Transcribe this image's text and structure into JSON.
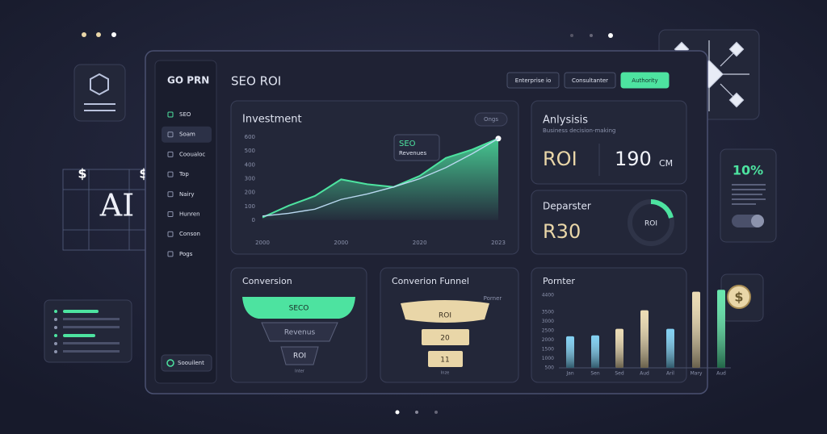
{
  "sidebar": {
    "logo": "GO PRN",
    "items": [
      "SEO",
      "Soam",
      "Cooualoc",
      "Top",
      "Nairy",
      "Hunren",
      "Conson",
      "Pogs"
    ],
    "footer": "Soouilent"
  },
  "header": {
    "title": "SEO ROI",
    "buttons": [
      "Enterprise io",
      "Consultanter",
      "Authority"
    ]
  },
  "cards": {
    "analysis": {
      "title": "Anlysisis",
      "subtitle": "Business decision-making",
      "metric_label": "ROI",
      "metric_value": "190",
      "metric_unit": "CM"
    },
    "departer": {
      "title": "Deparster",
      "value": "R30",
      "ring_label": "ROI"
    },
    "conversion": {
      "title": "Conversion",
      "stages": [
        "SECO",
        "Revenus",
        "ROI"
      ],
      "note": "Inter"
    },
    "funnel": {
      "title": "Converion Funnel",
      "tag": "Porner",
      "stages": [
        "ROI",
        "20",
        "11"
      ],
      "note": "Inze"
    },
    "badge": {
      "value": "10%"
    }
  },
  "decor": {
    "ai_label": "AI",
    "currency": "$"
  },
  "chart_data": [
    {
      "type": "area",
      "title": "Investment",
      "button": "Ongs",
      "annotation": [
        "SEO",
        "Revenues"
      ],
      "categories": [
        "2000",
        null,
        null,
        "2000",
        null,
        null,
        "2020",
        null,
        null,
        "2023"
      ],
      "series": [
        {
          "color": "#4de3a0",
          "values": [
            20,
            105,
            175,
            295,
            260,
            240,
            320,
            450,
            510,
            590
          ]
        },
        {
          "color": "#b9d8f0",
          "values": [
            30,
            50,
            80,
            150,
            190,
            240,
            300,
            380,
            480,
            590
          ]
        }
      ],
      "ylim": [
        0,
        600
      ],
      "yticks": [
        0,
        100,
        200,
        300,
        400,
        500,
        600
      ],
      "grid": false
    },
    {
      "type": "bar",
      "title": "Pornter",
      "categories": [
        "Jan",
        "Sen",
        "Sed",
        "Aud",
        "Aril",
        "Mary",
        "Aud"
      ],
      "values": [
        2200,
        2250,
        2600,
        3600,
        2600,
        4600,
        4700
      ],
      "colors": [
        "#6cc8f0",
        "#6cc8f0",
        "#e9d6a8",
        "#e9d6a8",
        "#6cc8f0",
        "#e9d6a8",
        "#4de3a0"
      ],
      "ylim": [
        500,
        4800
      ],
      "yticks": [
        500,
        1000,
        1500,
        2000,
        2500,
        3000,
        3500,
        4400
      ],
      "grid": false
    }
  ]
}
